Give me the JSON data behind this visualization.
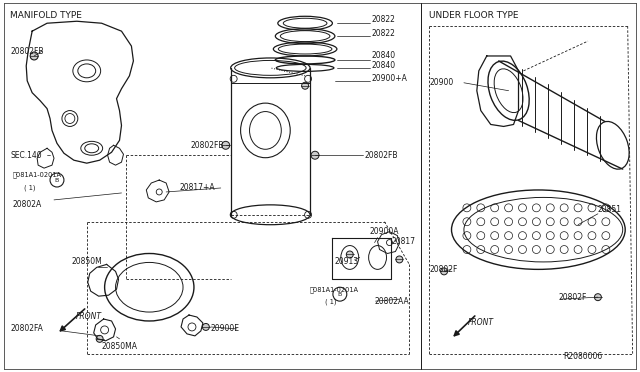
{
  "bg_color": "#ffffff",
  "line_color": "#1a1a1a",
  "title_left": "MANIFOLD TYPE",
  "title_right": "UNDER FLOOR TYPE",
  "ref_code": "R2080006",
  "fig_width": 6.4,
  "fig_height": 3.72,
  "dpi": 100
}
